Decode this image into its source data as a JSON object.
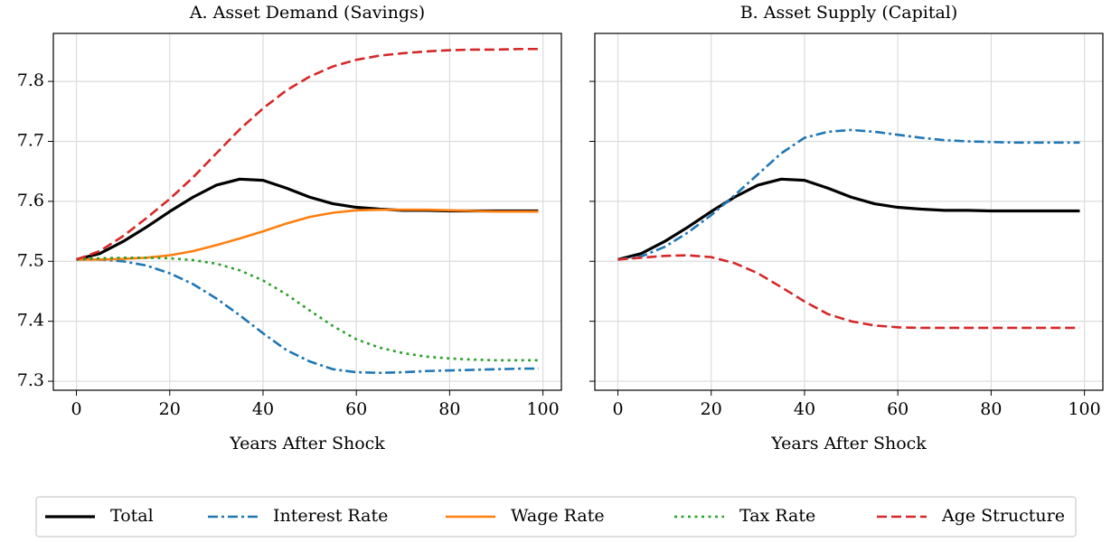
{
  "chart_data": [
    {
      "type": "line",
      "title": "A. Asset Demand (Savings)",
      "x_label": "Years After Shock",
      "x": [
        0,
        5,
        10,
        15,
        20,
        25,
        30,
        35,
        40,
        45,
        50,
        55,
        60,
        65,
        70,
        75,
        80,
        85,
        90,
        95,
        99
      ],
      "series": [
        {
          "name": "Total",
          "color": "#000000",
          "dash": "solid",
          "values": [
            7.503,
            7.513,
            7.533,
            7.557,
            7.583,
            7.607,
            7.627,
            7.637,
            7.635,
            7.622,
            7.607,
            7.596,
            7.59,
            7.587,
            7.585,
            7.585,
            7.584,
            7.584,
            7.584,
            7.584,
            7.584
          ]
        },
        {
          "name": "Interest Rate",
          "color": "#1f77b4",
          "dash": "dashdot",
          "values": [
            7.503,
            7.503,
            7.5,
            7.493,
            7.48,
            7.462,
            7.438,
            7.41,
            7.38,
            7.352,
            7.333,
            7.32,
            7.315,
            7.314,
            7.315,
            7.317,
            7.318,
            7.319,
            7.32,
            7.321,
            7.321
          ]
        },
        {
          "name": "Wage Rate",
          "color": "#ff7f0e",
          "dash": "solid",
          "values": [
            7.503,
            7.503,
            7.504,
            7.506,
            7.51,
            7.517,
            7.527,
            7.538,
            7.55,
            7.563,
            7.574,
            7.581,
            7.585,
            7.586,
            7.586,
            7.586,
            7.585,
            7.584,
            7.583,
            7.583,
            7.583
          ]
        },
        {
          "name": "Tax Rate",
          "color": "#2ca02c",
          "dash": "dotted",
          "values": [
            7.503,
            7.505,
            7.506,
            7.506,
            7.505,
            7.502,
            7.496,
            7.485,
            7.468,
            7.445,
            7.418,
            7.392,
            7.37,
            7.356,
            7.347,
            7.341,
            7.338,
            7.336,
            7.335,
            7.335,
            7.335
          ]
        },
        {
          "name": "Age Structure",
          "color": "#d62728",
          "dash": "dashed",
          "values": [
            7.503,
            7.517,
            7.542,
            7.572,
            7.604,
            7.64,
            7.68,
            7.72,
            7.755,
            7.785,
            7.808,
            7.825,
            7.836,
            7.843,
            7.847,
            7.85,
            7.852,
            7.853,
            7.853,
            7.854,
            7.854
          ]
        }
      ],
      "xlim": [
        -4.95,
        103.95
      ],
      "xticks": [
        0,
        20,
        40,
        60,
        80,
        100
      ],
      "ylim": [
        7.285,
        7.88
      ],
      "yticks": [
        7.3,
        7.4,
        7.5,
        7.6,
        7.7,
        7.8
      ],
      "grid": true,
      "legend": "bottom"
    },
    {
      "type": "line",
      "title": "B. Asset Supply (Capital)",
      "x_label": "Years After Shock",
      "x": [
        0,
        5,
        10,
        15,
        20,
        25,
        30,
        35,
        40,
        45,
        50,
        55,
        60,
        65,
        70,
        75,
        80,
        85,
        90,
        95,
        99
      ],
      "series": [
        {
          "color": "#000000",
          "dash": "solid",
          "values": [
            7.503,
            7.513,
            7.533,
            7.557,
            7.583,
            7.607,
            7.627,
            7.637,
            7.635,
            7.622,
            7.607,
            7.596,
            7.59,
            7.587,
            7.585,
            7.585,
            7.584,
            7.584,
            7.584,
            7.584,
            7.584
          ]
        },
        {
          "color": "#1f77b4",
          "dash": "dashdot",
          "values": [
            7.503,
            7.508,
            7.524,
            7.548,
            7.577,
            7.61,
            7.645,
            7.68,
            7.706,
            7.716,
            7.719,
            7.716,
            7.711,
            7.706,
            7.702,
            7.7,
            7.699,
            7.698,
            7.698,
            7.698,
            7.698
          ]
        },
        {
          "color": "#d62728",
          "dash": "dashed",
          "values": [
            7.503,
            7.506,
            7.509,
            7.51,
            7.507,
            7.497,
            7.48,
            7.457,
            7.433,
            7.412,
            7.4,
            7.393,
            7.39,
            7.389,
            7.389,
            7.389,
            7.389,
            7.389,
            7.389,
            7.389,
            7.389
          ]
        }
      ],
      "xlim": [
        -4.95,
        103.95
      ],
      "xticks": [
        0,
        20,
        40,
        60,
        80,
        100
      ],
      "ylim": [
        7.285,
        7.88
      ],
      "grid": true
    }
  ]
}
